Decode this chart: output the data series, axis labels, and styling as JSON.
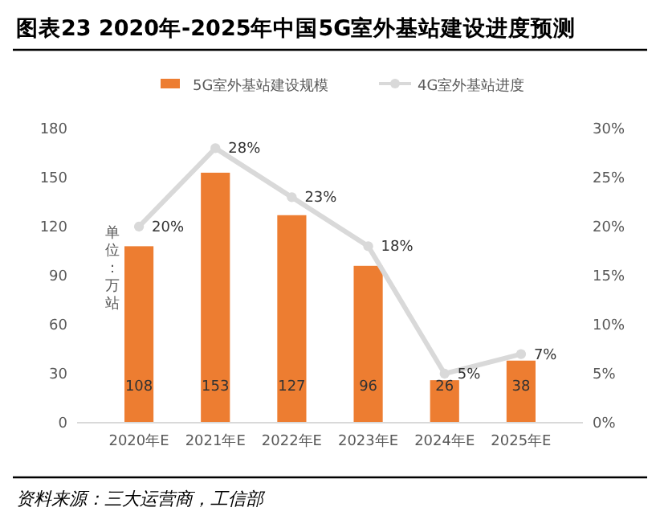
{
  "chart_data": {
    "type": "bar",
    "title": "图表23    2020年-2025年中国5G室外基站建设进度预测",
    "ylabel": "单位：万站",
    "categories": [
      "2020年E",
      "2021年E",
      "2022年E",
      "2023年E",
      "2024年E",
      "2025年E"
    ],
    "series": [
      {
        "name": "5G室外基站建设规模",
        "color": "#ed7d31",
        "values": [
          108,
          153,
          127,
          96,
          26,
          38
        ],
        "value_labels": [
          "108",
          "153",
          "127",
          "96",
          "26",
          "38"
        ]
      },
      {
        "name": "4G室外基站进度",
        "type": "line",
        "axis": "y2",
        "color": "#d9d9d9",
        "marker": "circle",
        "values": [
          20,
          28,
          23,
          18,
          5,
          7
        ],
        "value_labels": [
          "20%",
          "28%",
          "23%",
          "18%",
          "5%",
          "7%"
        ]
      }
    ],
    "ylim": [
      0,
      180
    ],
    "yticks": [
      0,
      30,
      60,
      90,
      120,
      150,
      180
    ],
    "y2lim": [
      0,
      30
    ],
    "y2ticks": [
      {
        "value": 0,
        "label": "0%"
      },
      {
        "value": 5,
        "label": "5%"
      },
      {
        "value": 10,
        "label": "10%"
      },
      {
        "value": 15,
        "label": "15%"
      },
      {
        "value": 20,
        "label": "20%"
      },
      {
        "value": 25,
        "label": "25%"
      },
      {
        "value": 30,
        "label": "30%"
      }
    ],
    "legend": "top",
    "annotations": [
      "资料来源：三大运营商，工信部"
    ]
  }
}
